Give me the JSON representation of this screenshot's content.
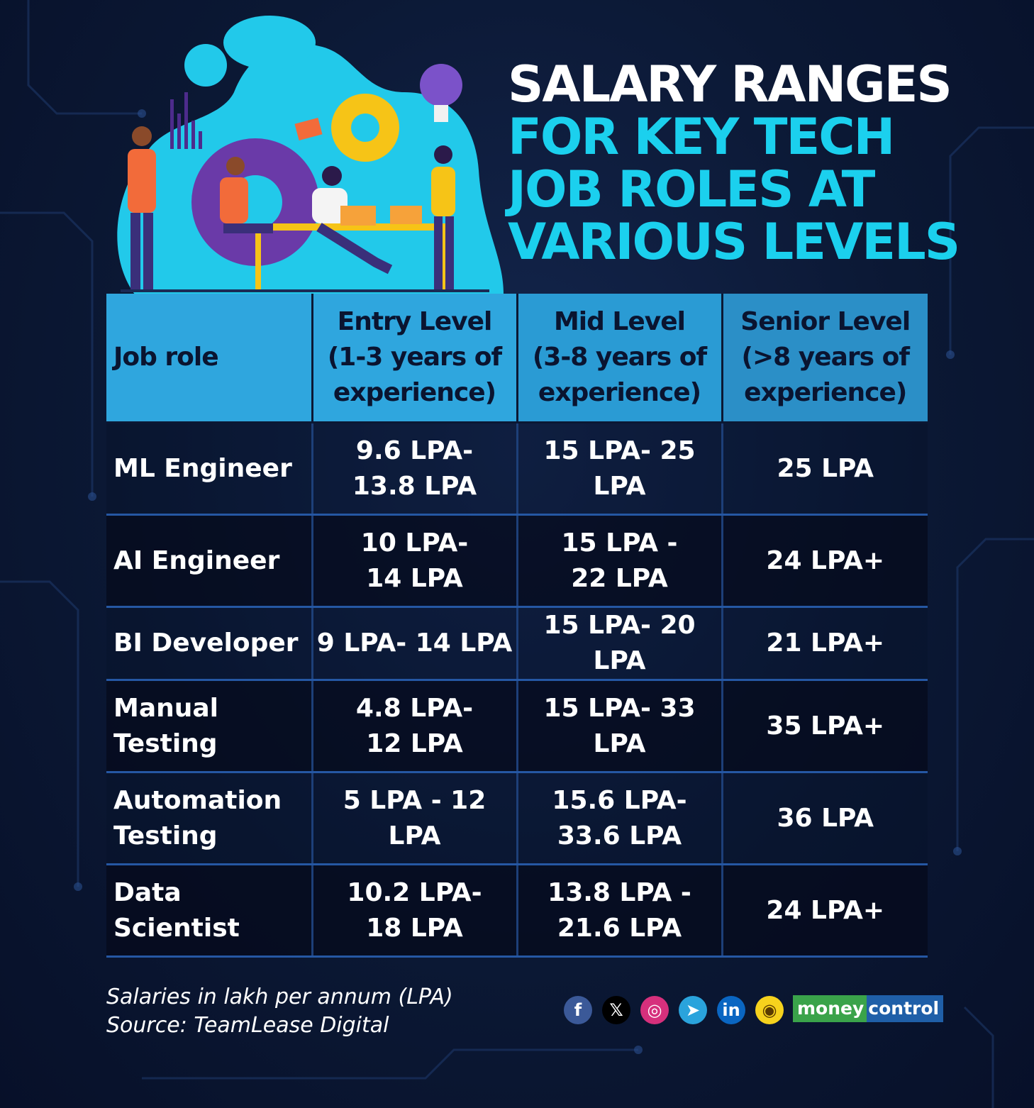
{
  "title": {
    "line1": "SALARY RANGES",
    "line2": "FOR KEY TECH",
    "line3": "JOB ROLES AT",
    "line4": "VARIOUS LEVELS"
  },
  "chart_data": {
    "type": "table",
    "columns": [
      {
        "label": "Job role"
      },
      {
        "label": "Entry Level",
        "sub1": "(1-3 years of",
        "sub2": "experience)"
      },
      {
        "label": "Mid Level",
        "sub1": "(3-8 years of",
        "sub2": "experience)"
      },
      {
        "label": "Senior Level",
        "sub1": "(>8 years of",
        "sub2": "experience)"
      }
    ],
    "rows": [
      {
        "role": [
          "ML Engineer"
        ],
        "entry": [
          "9.6 LPA-",
          "13.8 LPA"
        ],
        "mid": [
          "15 LPA- 25 LPA"
        ],
        "senior": [
          "25 LPA"
        ]
      },
      {
        "role": [
          "AI Engineer"
        ],
        "entry": [
          "10 LPA-",
          "14 LPA"
        ],
        "mid": [
          "15 LPA -",
          "22 LPA"
        ],
        "senior": [
          "24 LPA+"
        ]
      },
      {
        "role": [
          "BI Developer"
        ],
        "entry": [
          "9 LPA- 14 LPA"
        ],
        "mid": [
          "15 LPA- 20 LPA"
        ],
        "senior": [
          "21 LPA+"
        ]
      },
      {
        "role": [
          "Manual",
          "Testing"
        ],
        "entry": [
          "4.8 LPA-",
          "12 LPA"
        ],
        "mid": [
          "15 LPA- 33 LPA"
        ],
        "senior": [
          "35 LPA+"
        ]
      },
      {
        "role": [
          "Automation",
          "Testing"
        ],
        "entry": [
          "5 LPA - 12 LPA"
        ],
        "mid": [
          "15.6 LPA-",
          "33.6 LPA"
        ],
        "senior": [
          "36 LPA"
        ]
      },
      {
        "role": [
          "Data Scientist"
        ],
        "entry": [
          "10.2 LPA-",
          "18 LPA"
        ],
        "mid": [
          "13.8 LPA -",
          "21.6 LPA"
        ],
        "senior": [
          "24 LPA+"
        ]
      }
    ]
  },
  "footnote": {
    "line1": "Salaries in lakh per annum (LPA)",
    "line2": "Source: TeamLease Digital"
  },
  "social": [
    {
      "icon": "facebook-icon",
      "glyph": "f",
      "color": "#3b5998"
    },
    {
      "icon": "x-icon",
      "glyph": "𝕏",
      "color": "#000000"
    },
    {
      "icon": "instagram-icon",
      "glyph": "◎",
      "color": "#d6307c"
    },
    {
      "icon": "telegram-icon",
      "glyph": "➤",
      "color": "#2aa3dc"
    },
    {
      "icon": "linkedin-icon",
      "glyph": "in",
      "color": "#0a66c2"
    },
    {
      "icon": "koo-icon",
      "glyph": "◉",
      "color": "#f6d21d"
    }
  ],
  "brand": {
    "part1": "money",
    "part2": "control"
  }
}
